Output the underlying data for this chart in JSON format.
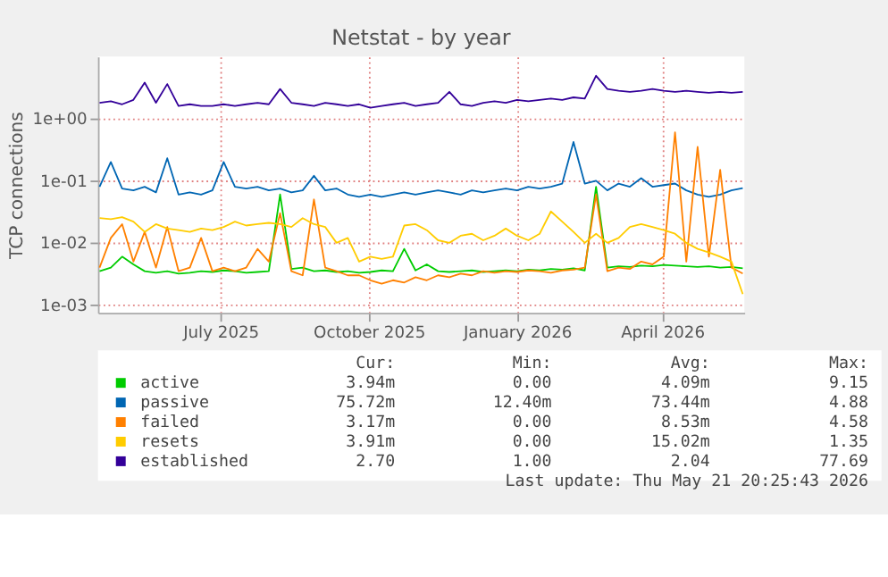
{
  "chart_data": {
    "type": "line",
    "title": "Netstat - by year",
    "ylabel": "TCP connections",
    "log": "y",
    "grid": true,
    "legend": "bottom",
    "line_style": "solid",
    "marker": "none",
    "x": [
      "2025-04-17",
      "2025-04-24",
      "2025-05-01",
      "2025-05-08",
      "2025-05-15",
      "2025-05-22",
      "2025-05-29",
      "2025-06-05",
      "2025-06-12",
      "2025-06-19",
      "2025-06-26",
      "2025-07-03",
      "2025-07-10",
      "2025-07-17",
      "2025-07-24",
      "2025-07-31",
      "2025-08-07",
      "2025-08-14",
      "2025-08-21",
      "2025-08-28",
      "2025-09-04",
      "2025-09-11",
      "2025-09-18",
      "2025-09-25",
      "2025-10-02",
      "2025-10-09",
      "2025-10-16",
      "2025-10-23",
      "2025-10-30",
      "2025-11-06",
      "2025-11-13",
      "2025-11-20",
      "2025-11-27",
      "2025-12-04",
      "2025-12-11",
      "2025-12-18",
      "2025-12-25",
      "2026-01-01",
      "2026-01-08",
      "2026-01-15",
      "2026-01-22",
      "2026-01-29",
      "2026-02-05",
      "2026-02-12",
      "2026-02-19",
      "2026-02-26",
      "2026-03-05",
      "2026-03-12",
      "2026-03-19",
      "2026-03-26",
      "2026-04-02",
      "2026-04-09",
      "2026-04-16",
      "2026-04-23",
      "2026-04-30",
      "2026-05-07",
      "2026-05-14",
      "2026-05-21"
    ],
    "xlim": [
      "2025-04-16",
      "2026-05-22"
    ],
    "xticks": [
      {
        "value": "2025-07-01",
        "label": "July 2025"
      },
      {
        "value": "2025-10-01",
        "label": "October 2025"
      },
      {
        "value": "2026-01-01",
        "label": "January 2026"
      },
      {
        "value": "2026-04-01",
        "label": "April 2026"
      }
    ],
    "ylim": [
      0.00075,
      10
    ],
    "yticks": [
      {
        "value": 0.001,
        "label": "1e-03"
      },
      {
        "value": 0.01,
        "label": "1e-02"
      },
      {
        "value": 0.1,
        "label": "1e-01"
      },
      {
        "value": 1,
        "label": "1e+00"
      }
    ],
    "series": [
      {
        "name": "active",
        "color": "#00cc00",
        "values": [
          0.0035,
          0.004,
          0.006,
          0.0045,
          0.0035,
          0.0033,
          0.0035,
          0.0032,
          0.0033,
          0.0035,
          0.0034,
          0.0036,
          0.0035,
          0.0033,
          0.0034,
          0.0035,
          0.06,
          0.0038,
          0.004,
          0.0035,
          0.0036,
          0.0034,
          0.0035,
          0.0033,
          0.0034,
          0.0036,
          0.0035,
          0.008,
          0.0036,
          0.0045,
          0.0035,
          0.0034,
          0.0035,
          0.0036,
          0.0034,
          0.0035,
          0.0036,
          0.0035,
          0.0037,
          0.0036,
          0.0038,
          0.0037,
          0.0039,
          0.0036,
          0.08,
          0.004,
          0.0042,
          0.0041,
          0.0043,
          0.0042,
          0.0044,
          0.0043,
          0.0042,
          0.0041,
          0.0042,
          0.004,
          0.0041,
          0.0039
        ]
      },
      {
        "name": "passive",
        "color": "#0066b3",
        "values": [
          0.08,
          0.2,
          0.075,
          0.07,
          0.08,
          0.065,
          0.23,
          0.06,
          0.065,
          0.06,
          0.07,
          0.2,
          0.08,
          0.075,
          0.08,
          0.07,
          0.075,
          0.065,
          0.07,
          0.12,
          0.07,
          0.075,
          0.06,
          0.055,
          0.06,
          0.055,
          0.06,
          0.065,
          0.06,
          0.065,
          0.07,
          0.065,
          0.06,
          0.07,
          0.065,
          0.07,
          0.075,
          0.07,
          0.08,
          0.075,
          0.08,
          0.09,
          0.42,
          0.09,
          0.1,
          0.07,
          0.09,
          0.08,
          0.11,
          0.08,
          0.085,
          0.09,
          0.07,
          0.06,
          0.055,
          0.06,
          0.07,
          0.076
        ]
      },
      {
        "name": "failed",
        "color": "#ff8000",
        "values": [
          0.004,
          0.012,
          0.02,
          0.005,
          0.015,
          0.004,
          0.018,
          0.0035,
          0.004,
          0.012,
          0.0035,
          0.004,
          0.0035,
          0.004,
          0.008,
          0.005,
          0.03,
          0.0035,
          0.003,
          0.05,
          0.004,
          0.0035,
          0.003,
          0.003,
          0.0025,
          0.0022,
          0.0025,
          0.0023,
          0.0028,
          0.0025,
          0.003,
          0.0028,
          0.0032,
          0.003,
          0.0035,
          0.0033,
          0.0035,
          0.0034,
          0.0036,
          0.0035,
          0.0033,
          0.0036,
          0.0037,
          0.004,
          0.06,
          0.0035,
          0.004,
          0.0038,
          0.005,
          0.0045,
          0.006,
          0.6,
          0.005,
          0.35,
          0.006,
          0.15,
          0.004,
          0.0032
        ]
      },
      {
        "name": "resets",
        "color": "#ffcc00",
        "values": [
          0.025,
          0.024,
          0.026,
          0.022,
          0.015,
          0.02,
          0.017,
          0.016,
          0.015,
          0.017,
          0.016,
          0.018,
          0.022,
          0.019,
          0.02,
          0.021,
          0.02,
          0.018,
          0.025,
          0.02,
          0.018,
          0.01,
          0.012,
          0.005,
          0.006,
          0.0055,
          0.006,
          0.019,
          0.02,
          0.016,
          0.011,
          0.01,
          0.013,
          0.014,
          0.011,
          0.013,
          0.017,
          0.013,
          0.011,
          0.014,
          0.032,
          0.022,
          0.015,
          0.01,
          0.014,
          0.01,
          0.012,
          0.018,
          0.02,
          0.018,
          0.016,
          0.014,
          0.01,
          0.008,
          0.007,
          0.006,
          0.005,
          0.0015
        ]
      },
      {
        "name": "established",
        "color": "#330099",
        "values": [
          1.8,
          1.9,
          1.7,
          2.0,
          3.8,
          1.8,
          3.6,
          1.6,
          1.7,
          1.6,
          1.6,
          1.7,
          1.6,
          1.7,
          1.8,
          1.7,
          3.0,
          1.8,
          1.7,
          1.6,
          1.8,
          1.7,
          1.6,
          1.7,
          1.5,
          1.6,
          1.7,
          1.8,
          1.6,
          1.7,
          1.8,
          2.7,
          1.7,
          1.6,
          1.8,
          1.9,
          1.8,
          2.0,
          1.9,
          2.0,
          2.1,
          2.0,
          2.2,
          2.1,
          4.9,
          3.0,
          2.8,
          2.7,
          2.8,
          3.0,
          2.8,
          2.7,
          2.8,
          2.7,
          2.6,
          2.7,
          2.6,
          2.7
        ]
      }
    ],
    "annotations": [
      "Cur:",
      "Min:",
      "Avg:",
      "Max:",
      "3.94m",
      "0.00",
      "4.09m",
      "9.15",
      "75.72m",
      "12.40m",
      "73.44m",
      "4.88",
      "3.17m",
      "0.00",
      "8.53m",
      "4.58",
      "3.91m",
      "0.00",
      "15.02m",
      "1.35",
      "2.70",
      "1.00",
      "2.04",
      "77.69",
      "Last update: Thu May 21 20:25:43 2026"
    ]
  }
}
